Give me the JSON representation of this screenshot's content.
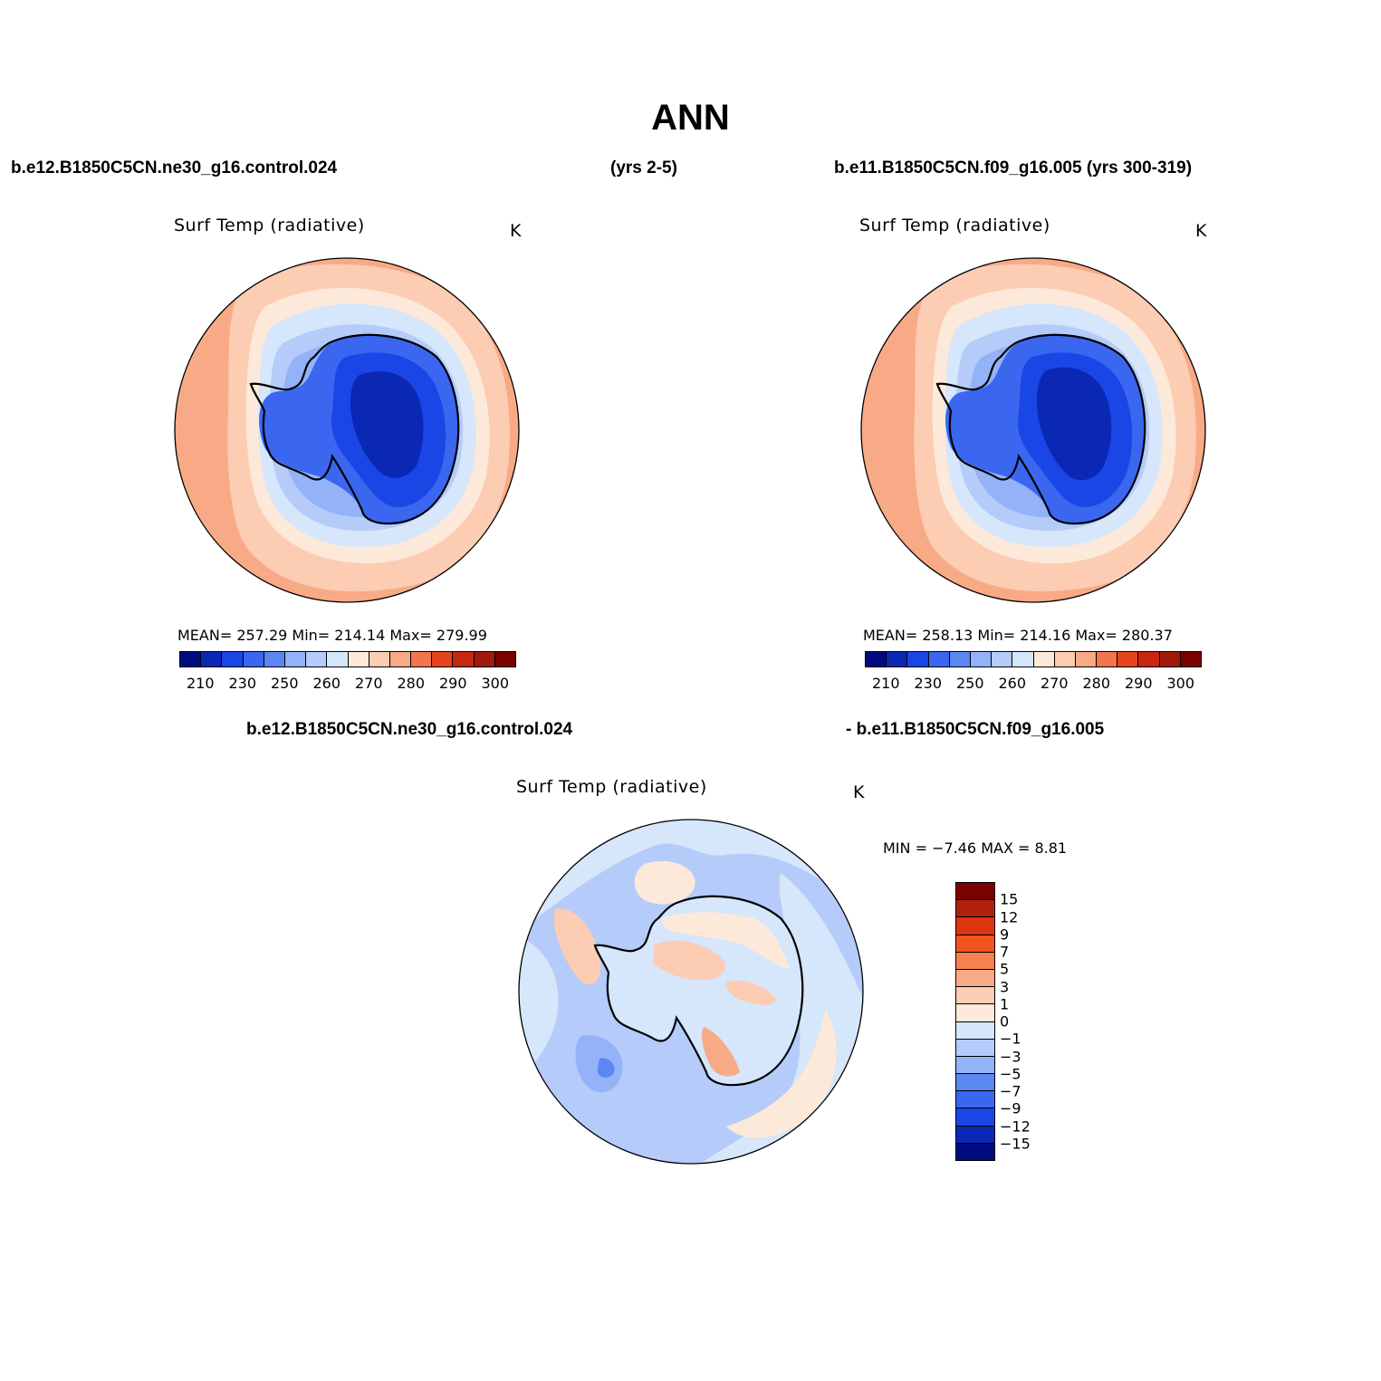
{
  "title": "ANN",
  "header": {
    "left": "b.e12.B1850C5CN.ne30_g16.control.024",
    "middle": "(yrs 2-5)",
    "right": "b.e11.B1850C5CN.f09_g16.005 (yrs 300-319)",
    "diff_left": "b.e12.B1850C5CN.ne30_g16.control.024",
    "diff_right": "- b.e11.B1850C5CN.f09_g16.005"
  },
  "panels": [
    {
      "title": "Surf Temp (radiative)",
      "unit": "K",
      "stats": "MEAN= 257.29   Min= 214.14   Max= 279.99"
    },
    {
      "title": "Surf Temp (radiative)",
      "unit": "K",
      "stats": "MEAN= 258.13   Min= 214.16   Max= 280.37"
    },
    {
      "title": "Surf Temp (radiative)",
      "unit": "K",
      "stats": "MIN =   −7.46 MAX =    8.81"
    }
  ],
  "abs_colorbar": {
    "colors": [
      "#000b80",
      "#0a28b4",
      "#1a46e6",
      "#3a66f0",
      "#5c86f2",
      "#93b2f7",
      "#b5cbf9",
      "#d6e6fb",
      "#fde9d9",
      "#fcccb3",
      "#f8aa86",
      "#f3754d",
      "#e8431f",
      "#c6290f",
      "#a0190a",
      "#7b0000"
    ],
    "labels": [
      "210",
      "230",
      "250",
      "260",
      "270",
      "280",
      "290",
      "300"
    ]
  },
  "diff_colorbar": {
    "colors": [
      "#7b0000",
      "#b0200c",
      "#dc3512",
      "#f3541f",
      "#f6804f",
      "#f8aa86",
      "#fcccb3",
      "#fde9d9",
      "#d6e6fb",
      "#b5cbf9",
      "#93b2f7",
      "#5c86f2",
      "#3a66f0",
      "#1a46e6",
      "#0a28b4",
      "#000b80"
    ],
    "labels": [
      "15",
      "12",
      "9",
      "7",
      "5",
      "3",
      "1",
      "0",
      "−1",
      "−3",
      "−5",
      "−7",
      "−9",
      "−12",
      "−15"
    ]
  },
  "chart_data": {
    "type": "heatmap",
    "projection": "south polar stereographic",
    "variable": "Surf Temp (radiative)",
    "units": "K",
    "season": "ANN",
    "maps": [
      {
        "case": "b.e12.B1850C5CN.ne30_g16.control.024",
        "years": "(yrs 2-5)",
        "mean": 257.29,
        "min": 214.14,
        "max": 279.99,
        "contour_levels": [
          210,
          220,
          230,
          240,
          250,
          255,
          260,
          265,
          270,
          275,
          280,
          285,
          290,
          295,
          300
        ]
      },
      {
        "case": "b.e11.B1850C5CN.f09_g16.005",
        "years": "(yrs 300-319)",
        "mean": 258.13,
        "min": 214.16,
        "max": 280.37,
        "contour_levels": [
          210,
          220,
          230,
          240,
          250,
          255,
          260,
          265,
          270,
          275,
          280,
          285,
          290,
          295,
          300
        ]
      },
      {
        "case": "difference",
        "min": -7.46,
        "max": 8.81,
        "contour_levels": [
          -15,
          -12,
          -9,
          -7,
          -5,
          -3,
          -1,
          0,
          1,
          3,
          5,
          7,
          9,
          12,
          15
        ]
      }
    ]
  }
}
